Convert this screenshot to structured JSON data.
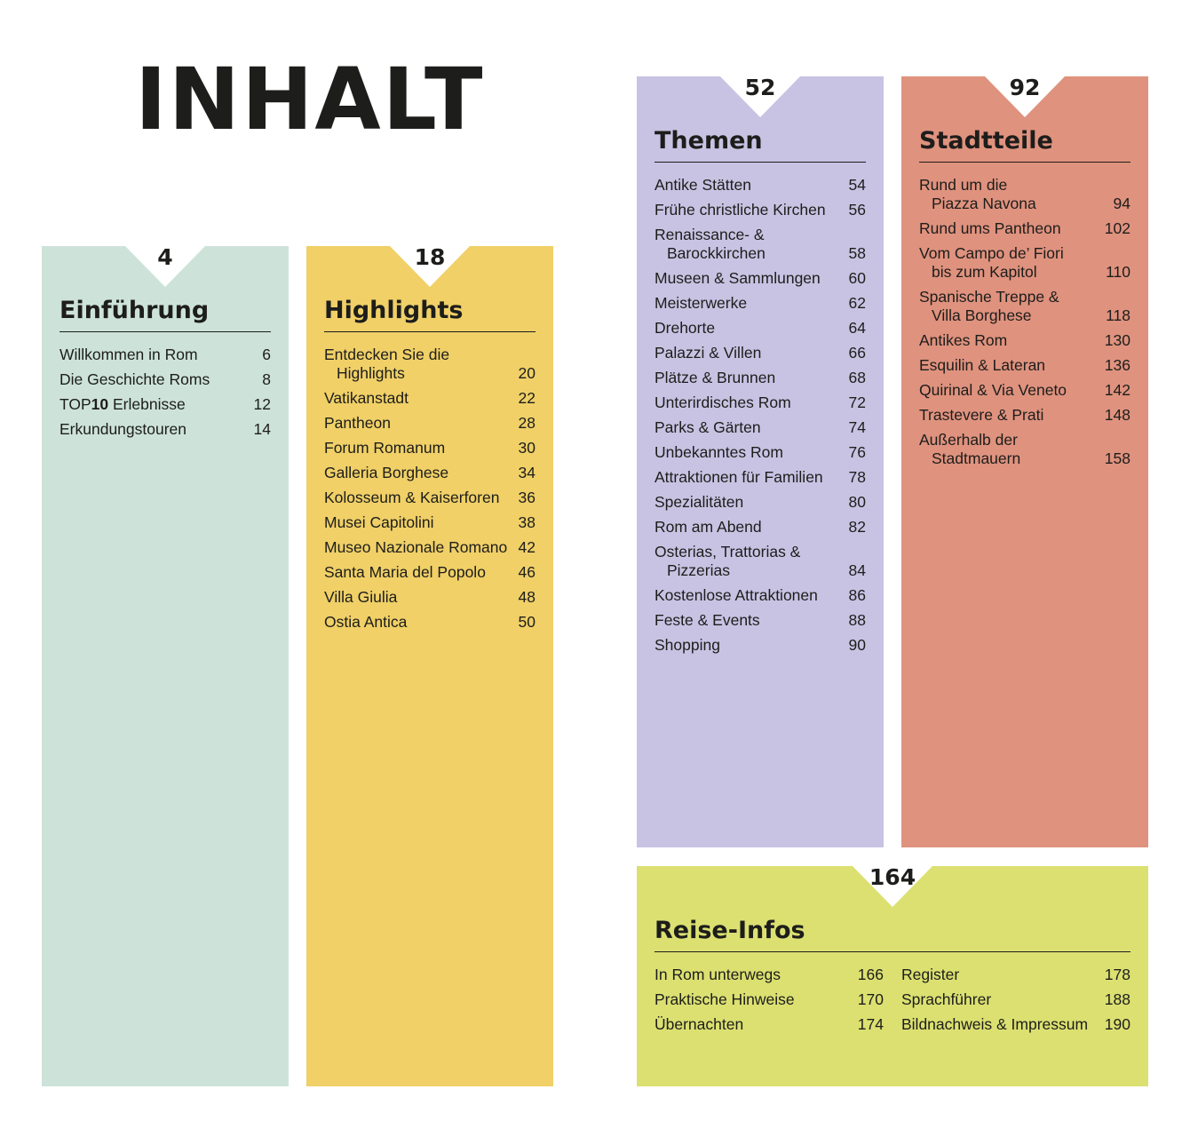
{
  "page_title": "INHALT",
  "colors": {
    "einfuehrung": "#cde3da",
    "highlights": "#f0d067",
    "themen": "#c8c3e3",
    "stadtteile": "#df927e",
    "reise_infos": "#dbe071"
  },
  "sections": {
    "einfuehrung": {
      "page": "4",
      "title": "Einführung",
      "entries": [
        {
          "label": "Willkommen in Rom",
          "page": "6"
        },
        {
          "label": "Die Geschichte Roms",
          "page": "8"
        },
        {
          "label_prefix": "TOP",
          "label_bold": "10",
          "label_suffix": " Erlebnisse",
          "page": "12"
        },
        {
          "label": "Erkundungstouren",
          "page": "14"
        }
      ]
    },
    "highlights": {
      "page": "18",
      "title": "Highlights",
      "entries": [
        {
          "label": "Entdecken Sie die",
          "label2": "Highlights",
          "page": "20"
        },
        {
          "label": "Vatikanstadt",
          "page": "22"
        },
        {
          "label": "Pantheon",
          "page": "28"
        },
        {
          "label": "Forum Romanum",
          "page": "30"
        },
        {
          "label": "Galleria Borghese",
          "page": "34"
        },
        {
          "label": "Kolosseum & Kaiserforen",
          "page": "36"
        },
        {
          "label": "Musei Capitolini",
          "page": "38"
        },
        {
          "label": "Museo Nazionale Romano",
          "page": "42"
        },
        {
          "label": "Santa Maria del Popolo",
          "page": "46"
        },
        {
          "label": "Villa Giulia",
          "page": "48"
        },
        {
          "label": "Ostia Antica",
          "page": "50"
        }
      ]
    },
    "themen": {
      "page": "52",
      "title": "Themen",
      "entries": [
        {
          "label": "Antike Stätten",
          "page": "54"
        },
        {
          "label": "Frühe christliche Kirchen",
          "page": "56"
        },
        {
          "label": "Renaissance- &",
          "label2": "Barockkirchen",
          "page": "58"
        },
        {
          "label": "Museen & Sammlungen",
          "page": "60"
        },
        {
          "label": "Meisterwerke",
          "page": "62"
        },
        {
          "label": "Drehorte",
          "page": "64"
        },
        {
          "label": "Palazzi & Villen",
          "page": "66"
        },
        {
          "label": "Plätze & Brunnen",
          "page": "68"
        },
        {
          "label": "Unterirdisches Rom",
          "page": "72"
        },
        {
          "label": "Parks & Gärten",
          "page": "74"
        },
        {
          "label": "Unbekanntes Rom",
          "page": "76"
        },
        {
          "label": "Attraktionen für Familien",
          "page": "78"
        },
        {
          "label": "Spezialitäten",
          "page": "80"
        },
        {
          "label": "Rom am Abend",
          "page": "82"
        },
        {
          "label": "Osterias, Trattorias &",
          "label2": "Pizzerias",
          "page": "84"
        },
        {
          "label": "Kostenlose Attraktionen",
          "page": "86"
        },
        {
          "label": "Feste & Events",
          "page": "88"
        },
        {
          "label": "Shopping",
          "page": "90"
        }
      ]
    },
    "stadtteile": {
      "page": "92",
      "title": "Stadtteile",
      "entries": [
        {
          "label": "Rund um die",
          "label2": "Piazza Navona",
          "page": "94"
        },
        {
          "label": "Rund ums Pantheon",
          "page": "102"
        },
        {
          "label": "Vom Campo de’ Fiori",
          "label2": "bis zum Kapitol",
          "page": "110"
        },
        {
          "label": "Spanische Treppe &",
          "label2": "Villa Borghese",
          "page": "118"
        },
        {
          "label": "Antikes Rom",
          "page": "130"
        },
        {
          "label": "Esquilin & Lateran",
          "page": "136"
        },
        {
          "label": "Quirinal & Via Veneto",
          "page": "142"
        },
        {
          "label": "Trastevere & Prati",
          "page": "148"
        },
        {
          "label": "Außerhalb der",
          "label2": "Stadtmauern",
          "page": "158"
        }
      ]
    },
    "reise_infos": {
      "page": "164",
      "title": "Reise-Infos",
      "left_entries": [
        {
          "label": "In Rom unterwegs",
          "page": "166"
        },
        {
          "label": "Praktische Hinweise",
          "page": "170"
        },
        {
          "label": "Übernachten",
          "page": "174"
        }
      ],
      "right_entries": [
        {
          "label": "Register",
          "page": "178"
        },
        {
          "label": "Sprachführer",
          "page": "188"
        },
        {
          "label": "Bildnachweis & Impressum",
          "page": "190"
        }
      ]
    }
  }
}
